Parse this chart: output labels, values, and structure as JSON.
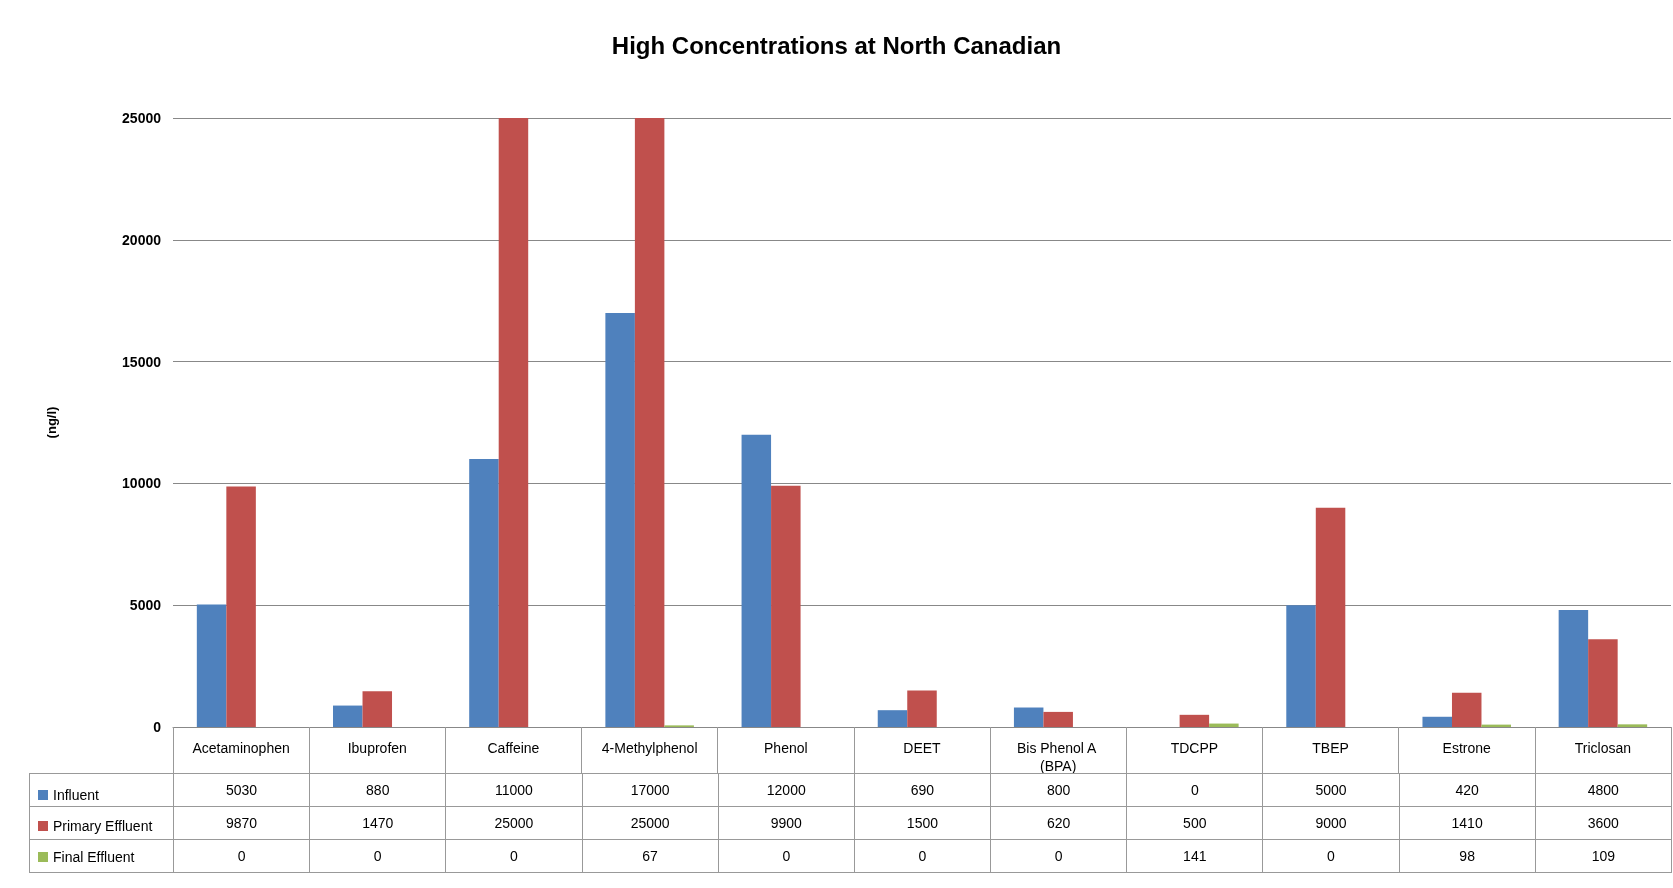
{
  "chart_data": {
    "type": "bar",
    "title": "High Concentrations at North Canadian",
    "ylabel": "(ng/l)",
    "categories": [
      "Acetaminophen",
      "Ibuprofen",
      "Caffeine",
      "4-Methylphenol",
      "Phenol",
      "DEET",
      "Bis Phenol A (BPA)",
      "TDCPP",
      "TBEP",
      "Estrone",
      "Triclosan"
    ],
    "series": [
      {
        "name": "Influent",
        "color": "#4f81bd",
        "values": [
          5030,
          880,
          11000,
          17000,
          12000,
          690,
          800,
          0,
          5000,
          420,
          4800
        ]
      },
      {
        "name": "Primary Effluent",
        "color": "#c0504d",
        "values": [
          9870,
          1470,
          25000,
          25000,
          9900,
          1500,
          620,
          500,
          9000,
          1410,
          3600
        ]
      },
      {
        "name": "Final Effluent",
        "color": "#9bbb59",
        "values": [
          0,
          0,
          0,
          67,
          0,
          0,
          0,
          141,
          0,
          98,
          109
        ]
      }
    ],
    "ylim": [
      0,
      25000
    ],
    "yticks": [
      0,
      5000,
      10000,
      15000,
      20000,
      25000
    ],
    "grid": "y",
    "legend": "bottom left",
    "data_labels": true
  }
}
